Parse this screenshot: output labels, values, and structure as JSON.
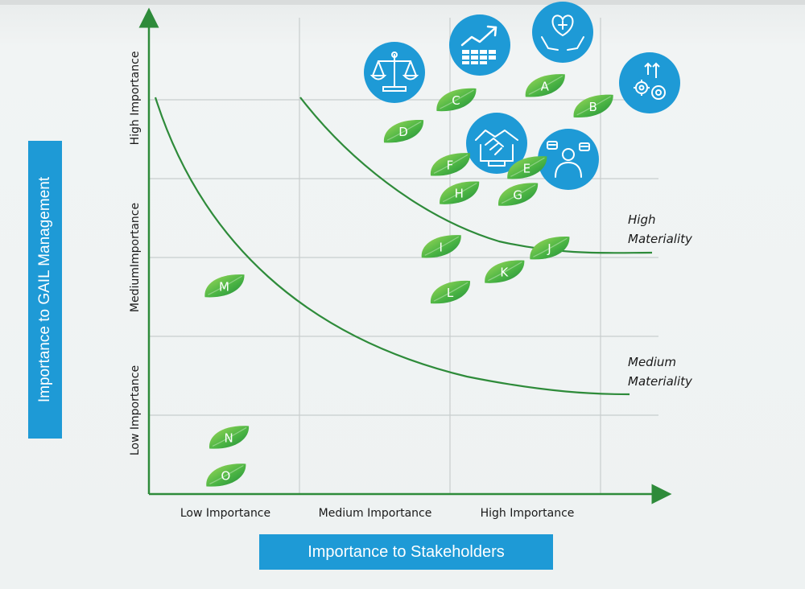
{
  "chart_data": {
    "type": "scatter",
    "title": "",
    "xlabel": "Importance to Stakeholders",
    "ylabel": "Importance to GAIL Management",
    "xlim": [
      0,
      3.4
    ],
    "ylim": [
      0,
      3.0
    ],
    "x_categories": [
      "Low Importance",
      "Medium Importance",
      "High Importance"
    ],
    "y_categories": [
      "Low Importance",
      "MediumImportance",
      "High Importance"
    ],
    "grid": true,
    "points": [
      {
        "label": "A",
        "x": 2.63,
        "y": 2.59
      },
      {
        "label": "B",
        "x": 2.95,
        "y": 2.46
      },
      {
        "label": "C",
        "x": 2.04,
        "y": 2.5
      },
      {
        "label": "D",
        "x": 1.69,
        "y": 2.3
      },
      {
        "label": "E",
        "x": 2.51,
        "y": 2.07
      },
      {
        "label": "F",
        "x": 2.0,
        "y": 2.09
      },
      {
        "label": "G",
        "x": 2.45,
        "y": 1.9
      },
      {
        "label": "H",
        "x": 2.06,
        "y": 1.91
      },
      {
        "label": "I",
        "x": 1.94,
        "y": 1.57
      },
      {
        "label": "J",
        "x": 2.66,
        "y": 1.56
      },
      {
        "label": "K",
        "x": 2.36,
        "y": 1.41
      },
      {
        "label": "L",
        "x": 2.0,
        "y": 1.28
      },
      {
        "label": "M",
        "x": 0.5,
        "y": 1.32
      },
      {
        "label": "N",
        "x": 0.53,
        "y": 0.36
      },
      {
        "label": "O",
        "x": 0.51,
        "y": 0.12
      }
    ],
    "curves": [
      {
        "name": "High Materiality",
        "label_lines": [
          "High",
          "Materiality"
        ]
      },
      {
        "name": "Medium Materiality",
        "label_lines": [
          "Medium",
          "Materiality"
        ]
      }
    ],
    "icons": [
      "scales-of-justice-icon",
      "growth-chart-icon",
      "heart-care-icon",
      "gears-growth-icon",
      "handshake-icon",
      "employee-icon"
    ]
  },
  "colors": {
    "axis": "#2e8b3a",
    "curve": "#2e8b3a",
    "grid": "#c8cdcd",
    "leaf_light": "#8fd14f",
    "leaf_dark": "#1f8a3a",
    "icon_blue": "#1e9ad6",
    "text": "#1a1a1a"
  }
}
